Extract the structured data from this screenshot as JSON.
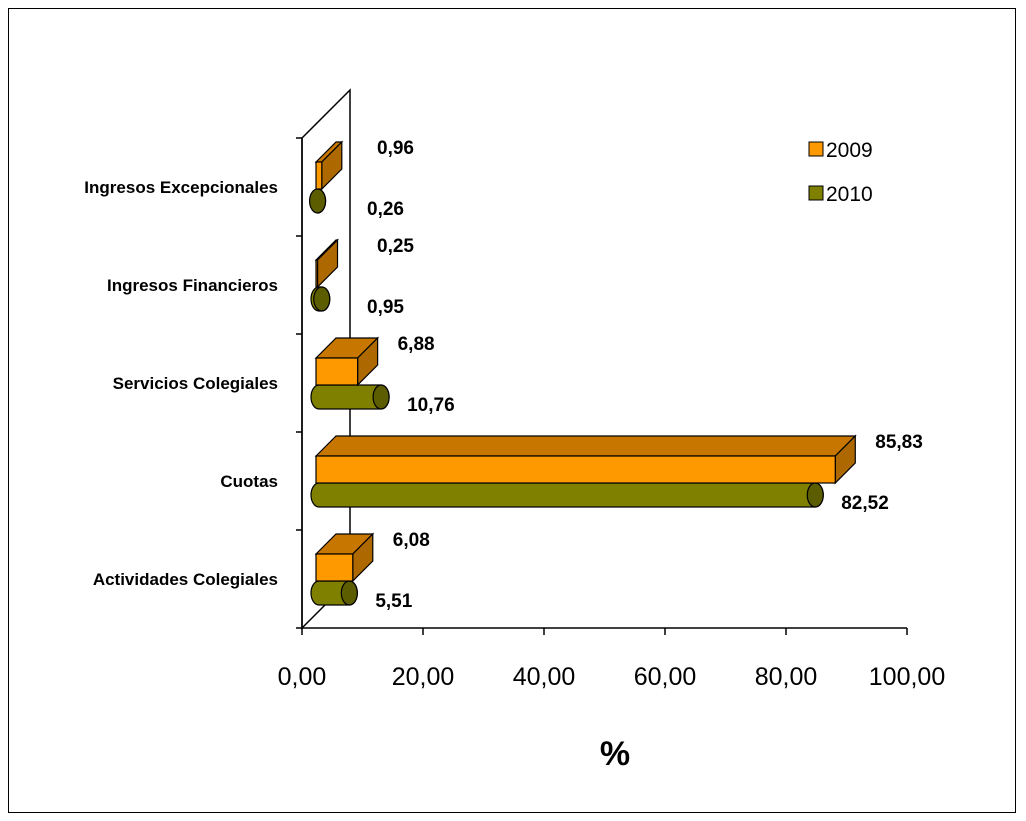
{
  "chart_data": {
    "type": "bar",
    "orientation": "horizontal",
    "three_d": true,
    "categories": [
      "Actividades Colegiales",
      "Cuotas",
      "Servicios Colegiales",
      "Ingresos Financieros",
      "Ingresos Excepcionales"
    ],
    "series": [
      {
        "name": "2009",
        "values": [
          6.08,
          85.83,
          6.88,
          0.25,
          0.96
        ],
        "labels": [
          "6,08",
          "85,83",
          "6,88",
          "0,25",
          "0,96"
        ],
        "color": "#FF9900",
        "shape": "box"
      },
      {
        "name": "2010",
        "values": [
          5.51,
          82.52,
          10.76,
          0.95,
          0.26
        ],
        "labels": [
          "5,51",
          "82,52",
          "10,76",
          "0,95",
          "0,26"
        ],
        "color": "#808000",
        "shape": "cylinder"
      }
    ],
    "xlabel": "%",
    "xlim": [
      0,
      100
    ],
    "xticks": [
      0,
      20,
      40,
      60,
      80,
      100
    ],
    "xtick_labels": [
      "0,00",
      "20,00",
      "40,00",
      "60,00",
      "80,00",
      "100,00"
    ],
    "legend": {
      "position": "top-right",
      "entries": [
        "2009",
        "2010"
      ]
    },
    "grid": false
  }
}
